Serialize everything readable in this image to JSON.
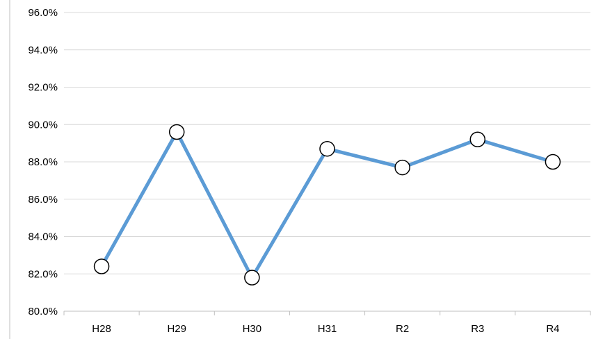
{
  "chart_data": {
    "type": "line",
    "title": "",
    "xlabel": "",
    "ylabel": "",
    "categories": [
      "H28",
      "H29",
      "H30",
      "H31",
      "R2",
      "R3",
      "R4"
    ],
    "series": [
      {
        "values": [
          82.4,
          89.6,
          81.8,
          88.7,
          87.7,
          89.2,
          88.0
        ]
      }
    ],
    "ylim": [
      80.0,
      96.0
    ],
    "yticks": [
      80.0,
      82.0,
      84.0,
      86.0,
      88.0,
      90.0,
      92.0,
      94.0,
      96.0
    ],
    "ytick_format": "percent_one_decimal",
    "grid": true,
    "legend": "none",
    "colors": {
      "line": "#5b9bd5",
      "marker_fill": "#ffffff",
      "marker_stroke": "#000000",
      "grid": "#d9d9d9"
    }
  }
}
